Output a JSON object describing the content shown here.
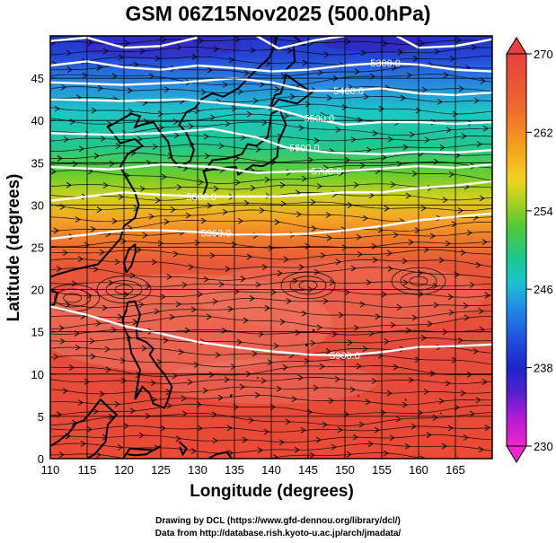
{
  "title": "GSM 06Z15Nov2025 (500.0hPa)",
  "xlabel": "Longitude (degrees)",
  "ylabel": "Latitude (degrees)",
  "credit_line1": "Drawing by DCL (https://www.gfd-dennou.org/library/dcl/)",
  "credit_line2": "Data from http://database.rish.kyoto-u.ac.jp/arch/jmadata/",
  "chart_data": {
    "type": "heatmap",
    "xlim": [
      110,
      170
    ],
    "ylim": [
      0,
      50
    ],
    "x_ticks": [
      110,
      115,
      120,
      125,
      130,
      135,
      140,
      145,
      150,
      155,
      160,
      165
    ],
    "y_ticks": [
      0,
      5,
      10,
      15,
      20,
      25,
      30,
      35,
      40,
      45
    ],
    "colorbar": {
      "min": 230,
      "max": 270,
      "ticks": [
        230,
        238,
        246,
        254,
        262,
        270
      ]
    },
    "grid": true,
    "contour_labels": [
      {
        "text": "5300.0",
        "lon": 155.5,
        "lat": 46.8
      },
      {
        "text": "5400.0",
        "lon": 150.5,
        "lat": 43.5
      },
      {
        "text": "5500.0",
        "lon": 146.5,
        "lat": 40.3
      },
      {
        "text": "5600.0",
        "lon": 144.5,
        "lat": 36.8
      },
      {
        "text": "5700.0",
        "lon": 147.5,
        "lat": 34.0
      },
      {
        "text": "5800.0",
        "lon": 130.5,
        "lat": 31.0
      },
      {
        "text": "5900.0",
        "lon": 132.5,
        "lat": 26.7
      },
      {
        "text": "5900.0",
        "lon": 150.0,
        "lat": 12.2
      }
    ]
  }
}
